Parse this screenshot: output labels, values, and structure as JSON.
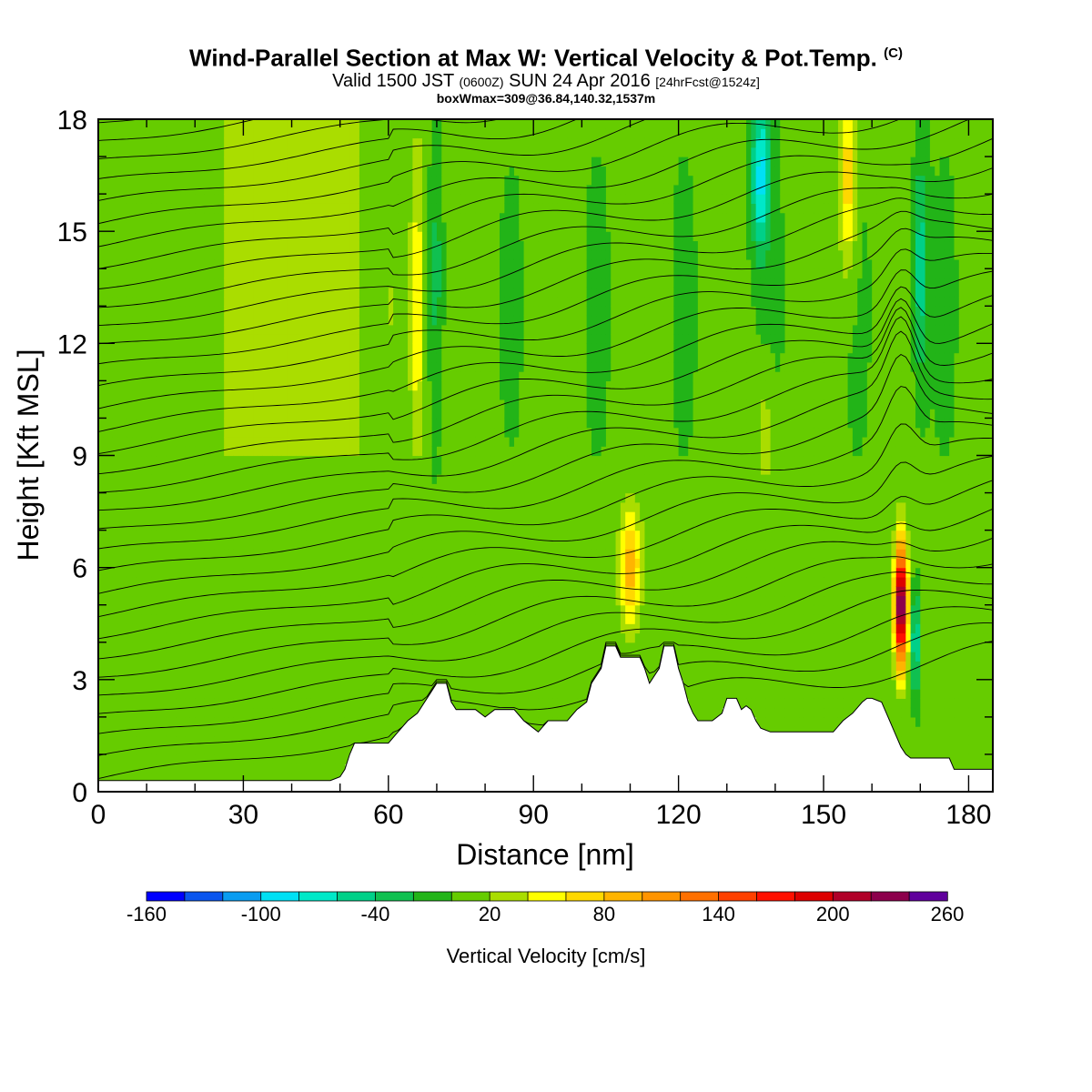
{
  "chart_data": {
    "type": "heatmap",
    "title": "Wind-Parallel Section at Max W: Vertical Velocity & Pot.Temp.",
    "title_mark": "(C)",
    "subtitle_parts": {
      "valid": "Valid 1500 JST",
      "utc": "(0600Z)",
      "date": "SUN 24 Apr 2016",
      "fcst": "[24hrFcst@1524z]"
    },
    "subtitle2": "boxWmax=309@36.84,140.32,1537m",
    "xlabel": "Distance [nm]",
    "ylabel": "Height [Kft MSL]",
    "xlim": [
      0,
      185
    ],
    "ylim": [
      0,
      18
    ],
    "x_ticks": [
      0,
      30,
      60,
      90,
      120,
      150,
      180
    ],
    "x_tick_labels": [
      "0",
      "30",
      "60",
      "90",
      "120",
      "150",
      "180"
    ],
    "y_ticks": [
      0,
      3,
      6,
      9,
      12,
      15,
      18
    ],
    "y_tick_labels": [
      "0",
      "3",
      "6",
      "9",
      "12",
      "15",
      "18"
    ],
    "colorbar": {
      "label": "Vertical Velocity [cm/s]",
      "levels": [
        -160,
        -140,
        -120,
        -100,
        -80,
        -60,
        -40,
        -20,
        0,
        20,
        40,
        60,
        80,
        100,
        120,
        140,
        160,
        180,
        200,
        220,
        240,
        260
      ],
      "tick_labels": [
        "-160",
        "-100",
        "-40",
        "20",
        "80",
        "140",
        "200",
        "260"
      ],
      "tick_values": [
        -160,
        -100,
        -40,
        20,
        80,
        140,
        200,
        260
      ],
      "colors": [
        "#0000ff",
        "#0a55ee",
        "#0a9cf0",
        "#00e0f4",
        "#00e8c8",
        "#00d088",
        "#10c050",
        "#22b418",
        "#66cc00",
        "#aadd00",
        "#ffff00",
        "#ffd800",
        "#ffb400",
        "#ff9400",
        "#ff7000",
        "#ff4000",
        "#ff1000",
        "#dd0000",
        "#b00028",
        "#8c004c",
        "#60009c"
      ]
    },
    "terrain": [
      [
        0,
        0.3
      ],
      [
        10,
        0.3
      ],
      [
        20,
        0.3
      ],
      [
        30,
        0.3
      ],
      [
        40,
        0.3
      ],
      [
        48,
        0.3
      ],
      [
        50,
        0.4
      ],
      [
        51,
        0.6
      ],
      [
        52,
        1.0
      ],
      [
        53,
        1.3
      ],
      [
        60,
        1.3
      ],
      [
        62,
        1.6
      ],
      [
        64,
        1.9
      ],
      [
        66,
        2.1
      ],
      [
        68,
        2.5
      ],
      [
        70,
        2.9
      ],
      [
        72,
        2.9
      ],
      [
        73,
        2.4
      ],
      [
        74,
        2.2
      ],
      [
        78,
        2.2
      ],
      [
        80,
        2.0
      ],
      [
        82,
        2.2
      ],
      [
        86,
        2.2
      ],
      [
        88,
        1.9
      ],
      [
        90,
        1.7
      ],
      [
        91,
        1.6
      ],
      [
        93,
        1.9
      ],
      [
        95,
        1.9
      ],
      [
        97,
        1.9
      ],
      [
        99,
        2.2
      ],
      [
        101,
        2.4
      ],
      [
        102,
        2.9
      ],
      [
        104,
        3.3
      ],
      [
        105,
        3.9
      ],
      [
        107,
        3.9
      ],
      [
        108,
        3.6
      ],
      [
        112,
        3.6
      ],
      [
        113,
        3.3
      ],
      [
        114,
        2.9
      ],
      [
        116,
        3.3
      ],
      [
        117,
        3.9
      ],
      [
        119,
        3.9
      ],
      [
        120,
        3.3
      ],
      [
        121,
        2.9
      ],
      [
        122,
        2.4
      ],
      [
        123,
        2.1
      ],
      [
        124,
        1.9
      ],
      [
        127,
        1.9
      ],
      [
        129,
        2.1
      ],
      [
        130,
        2.5
      ],
      [
        132,
        2.5
      ],
      [
        133,
        2.2
      ],
      [
        134,
        2.3
      ],
      [
        135,
        2.2
      ],
      [
        136,
        1.9
      ],
      [
        137,
        1.7
      ],
      [
        139,
        1.6
      ],
      [
        152,
        1.6
      ],
      [
        154,
        1.9
      ],
      [
        156,
        2.1
      ],
      [
        158,
        2.4
      ],
      [
        159,
        2.5
      ],
      [
        160,
        2.5
      ],
      [
        162,
        2.4
      ],
      [
        163,
        2.1
      ],
      [
        165,
        1.5
      ],
      [
        166,
        1.2
      ],
      [
        167,
        1.0
      ],
      [
        168,
        0.9
      ],
      [
        170,
        0.9
      ],
      [
        176,
        0.9
      ],
      [
        177,
        0.6
      ],
      [
        181,
        0.6
      ],
      [
        183,
        0.6
      ],
      [
        185,
        0.6
      ]
    ],
    "velocity_features": [
      {
        "x": 110,
        "z": 6.0,
        "sx": 2.2,
        "sz": 1.5,
        "w": 85
      },
      {
        "x": 66,
        "z": 13.0,
        "sx": 1.4,
        "sz": 4.0,
        "w": 55
      },
      {
        "x": 155,
        "z": 16.5,
        "sx": 1.8,
        "sz": 2.5,
        "w": 70
      },
      {
        "x": 166,
        "z": 5.0,
        "sx": 1.3,
        "sz": 1.6,
        "w": 250
      },
      {
        "x": 138,
        "z": 9.5,
        "sx": 2.0,
        "sz": 1.6,
        "w": 30
      },
      {
        "x": 137,
        "z": 16.5,
        "sx": 2.0,
        "sz": 2.0,
        "w": -90
      },
      {
        "x": 170,
        "z": 14.0,
        "sx": 1.5,
        "sz": 3.0,
        "w": -60
      },
      {
        "x": 70,
        "z": 14.0,
        "sx": 1.3,
        "sz": 4.0,
        "w": -30
      },
      {
        "x": 169,
        "z": 4.0,
        "sx": 0.9,
        "sz": 1.4,
        "w": -70
      }
    ]
  }
}
